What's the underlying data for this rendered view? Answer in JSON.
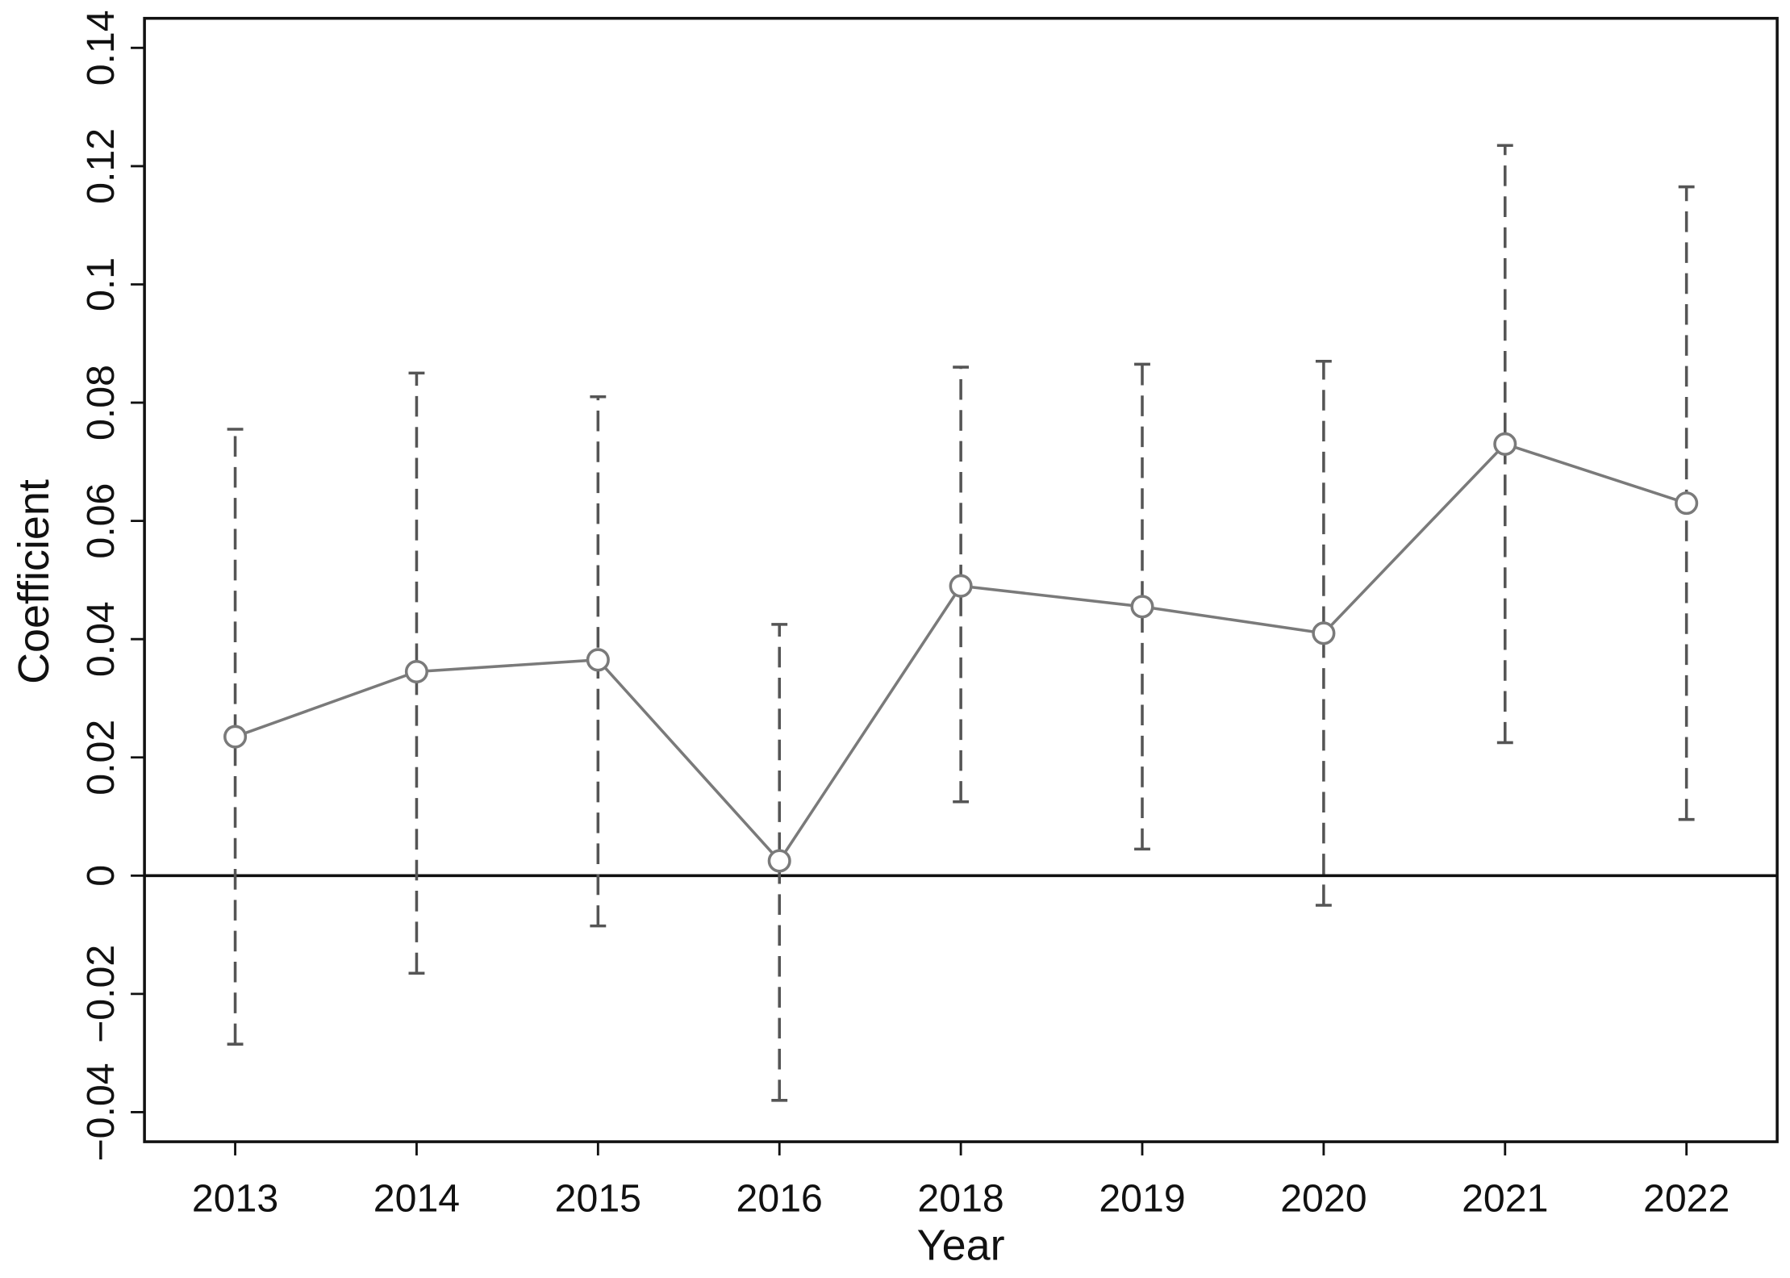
{
  "chart_data": {
    "type": "errorbar-line",
    "x_label": "Year",
    "y_label": "Coefficient",
    "categories": [
      "2013",
      "2014",
      "2015",
      "2016",
      "2018",
      "2019",
      "2020",
      "2021",
      "2022"
    ],
    "series": [
      {
        "color": "#7a7a7a",
        "errorbar_color": "#555555",
        "values": [
          0.0235,
          0.0345,
          0.0365,
          0.0025,
          0.049,
          0.0455,
          0.041,
          0.073,
          0.063
        ],
        "lower": [
          -0.0285,
          -0.0165,
          -0.0085,
          -0.038,
          0.0125,
          0.0045,
          -0.005,
          0.0225,
          0.0095
        ],
        "upper": [
          0.0755,
          0.085,
          0.081,
          0.0425,
          0.086,
          0.0865,
          0.087,
          0.1235,
          0.1165
        ]
      }
    ],
    "reference_line": 0,
    "ylim": [
      -0.045,
      0.145
    ],
    "yticks": [
      {
        "value": -0.04,
        "label": "−0.04"
      },
      {
        "value": -0.02,
        "label": "−0.02"
      },
      0,
      0.02,
      0.04,
      0.06,
      0.08,
      0.1,
      0.12,
      0.14
    ]
  }
}
